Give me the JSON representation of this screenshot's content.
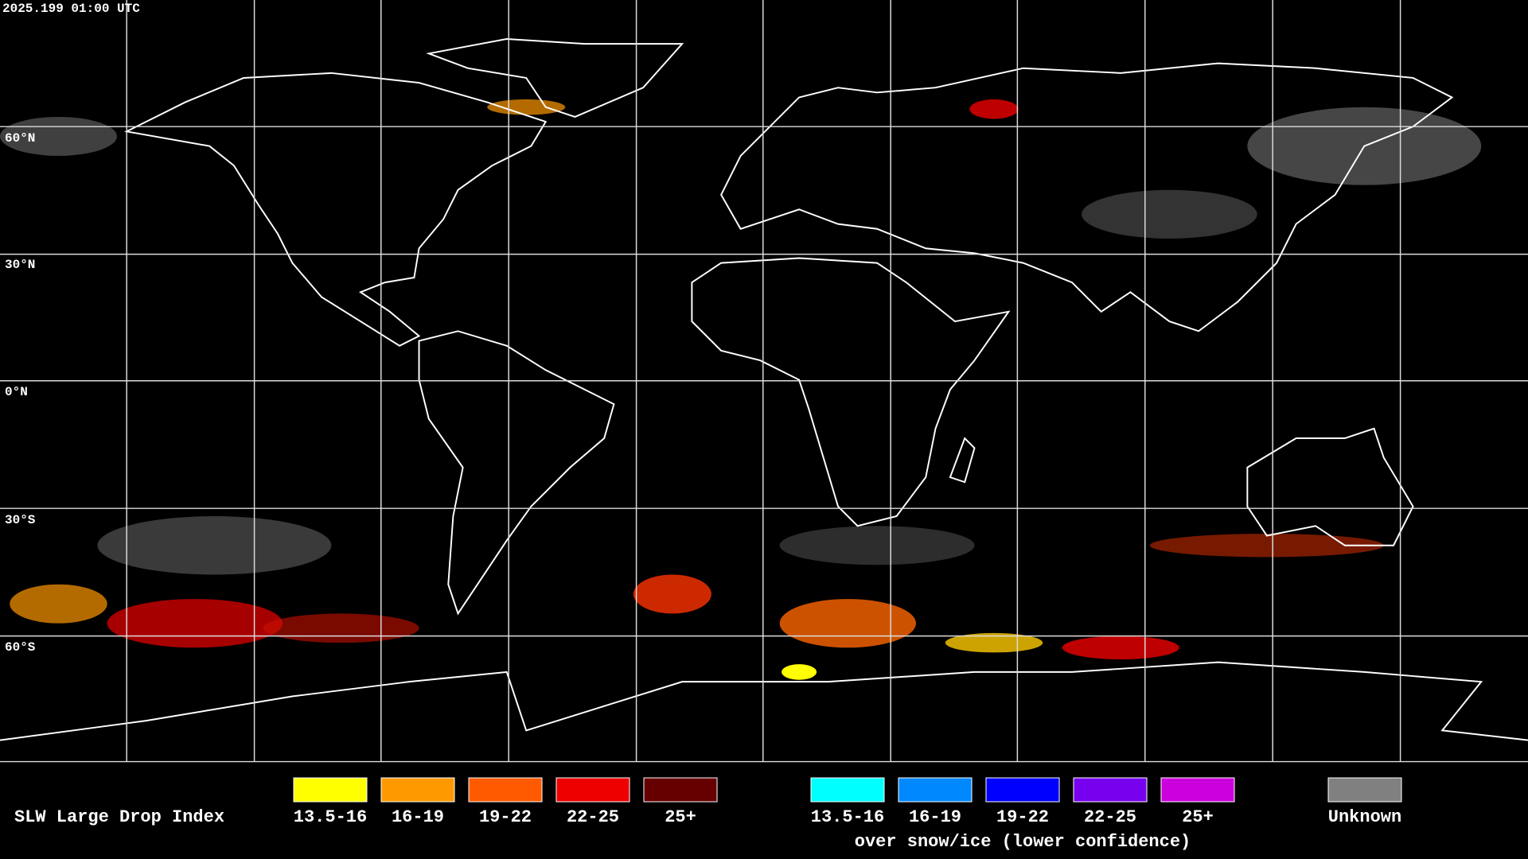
{
  "timestamp": "2025.199 01:00 UTC",
  "lat_labels": [
    "60°N",
    "30°N",
    "0°N",
    "30°S",
    "60°S"
  ],
  "legend": {
    "title": "SLW Large Drop Index",
    "items": [
      {
        "label": "13.5-16",
        "color": "#ffff00"
      },
      {
        "label": "16-19",
        "color": "#ff9900"
      },
      {
        "label": "19-22",
        "color": "#ff5a00"
      },
      {
        "label": "22-25",
        "color": "#ee0000"
      },
      {
        "label": "25+",
        "color": "#660000"
      }
    ],
    "snow_items": [
      {
        "label": "13.5-16",
        "color": "#00ffff"
      },
      {
        "label": "16-19",
        "color": "#0088ff"
      },
      {
        "label": "19-22",
        "color": "#0000ff"
      },
      {
        "label": "22-25",
        "color": "#7700ee"
      },
      {
        "label": "25+",
        "color": "#cc00dd"
      }
    ],
    "snow_caption": "over snow/ice (lower confidence)",
    "unknown": {
      "label": "Unknown",
      "color": "#808080"
    }
  }
}
